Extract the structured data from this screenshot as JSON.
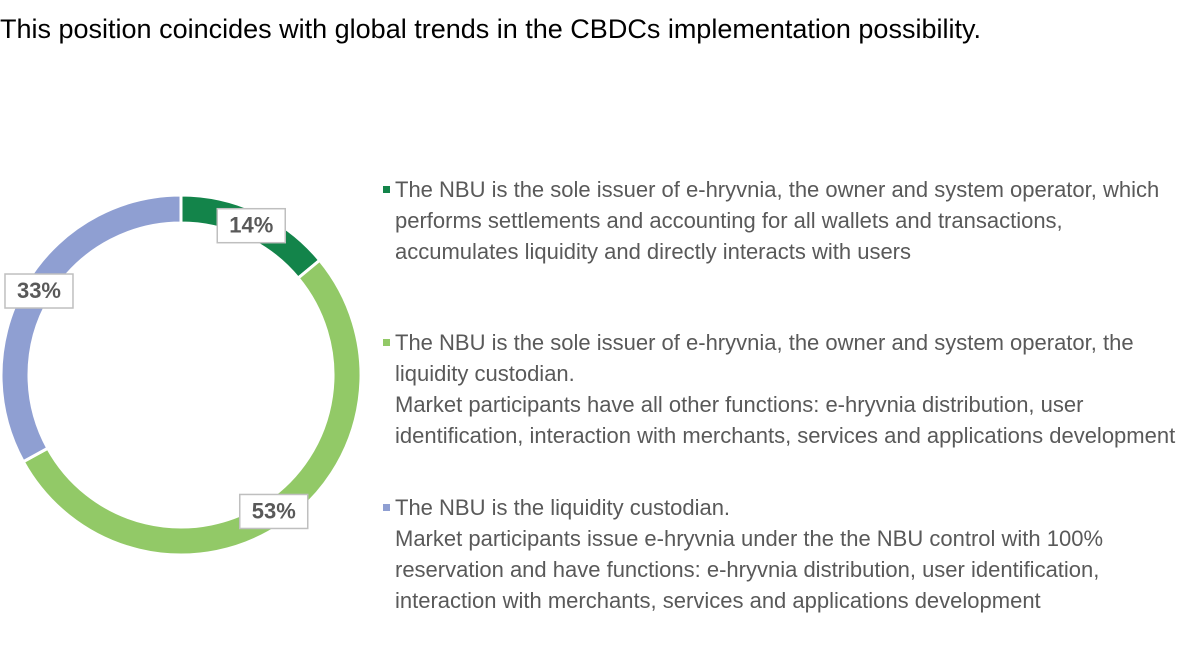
{
  "chart_data": {
    "type": "pie",
    "donut": true,
    "subtitle": "This position coincides with global trends in the CBDCs implementation possibility.",
    "categories": [
      "The NBU is the sole issuer of e-hryvnia, the owner and system operator, which performs settlements and accounting for all wallets and transactions, accumulates liquidity and directly interacts with users",
      "The NBU is the sole issuer of e-hryvnia, the owner and system operator, the liquidity custodian.\nMarket participants have all other functions: e-hryvnia distribution, user identification, interaction with merchants, services and applications development",
      "The NBU is the liquidity custodian.\nMarket participants issue e-hryvnia under the the NBU control with 100% reservation and have functions: e-hryvnia distribution, user identification, interaction with merchants, services and applications development"
    ],
    "values": [
      14,
      53,
      33
    ],
    "value_labels": [
      "14%",
      "53%",
      "33%"
    ],
    "colors": [
      "#13844a",
      "#92c967",
      "#8f9fd2"
    ]
  }
}
